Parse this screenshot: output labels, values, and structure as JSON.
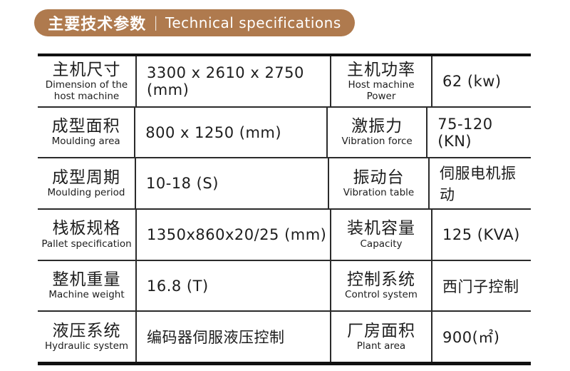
{
  "header": {
    "title_zh": "主要技术参数",
    "divider": "|",
    "title_en": "Technical specifications",
    "pill_color": "#AF7A4E",
    "text_color": "#FFFFFF"
  },
  "table": {
    "border_color": "#111111",
    "rows": [
      {
        "param1_zh": "主机尺寸",
        "param1_en": "Dimension of the\nhost machine",
        "value1": "3300 x 2610 x 2750 (mm)",
        "param2_zh": "主机功率",
        "param2_en": "Host machine\nPower",
        "value2": "62 (kw)"
      },
      {
        "param1_zh": "成型面积",
        "param1_en": "Moulding area",
        "value1": "800 x 1250 (mm)",
        "param2_zh": "激振力",
        "param2_en": "Vibration force",
        "value2": "75-120 (KN)"
      },
      {
        "param1_zh": "成型周期",
        "param1_en": "Moulding period",
        "value1": "10-18 (S)",
        "param2_zh": "振动台",
        "param2_en": "Vibration table",
        "value2": "伺服电机振动"
      },
      {
        "param1_zh": "栈板规格",
        "param1_en": "Pallet specification",
        "value1": "1350x860x20/25 (mm)",
        "param2_zh": "装机容量",
        "param2_en": "Capacity",
        "value2": "125 (KVA)"
      },
      {
        "param1_zh": "整机重量",
        "param1_en": "Machine weight",
        "value1": "16.8 (T)",
        "param2_zh": "控制系统",
        "param2_en": "Control system",
        "value2": "西门子控制"
      },
      {
        "param1_zh": "液压系统",
        "param1_en": "Hydraulic system",
        "value1": "编码器伺服液压控制",
        "param2_zh": "厂房面积",
        "param2_en": "Plant area",
        "value2": "900(㎡)"
      }
    ]
  }
}
